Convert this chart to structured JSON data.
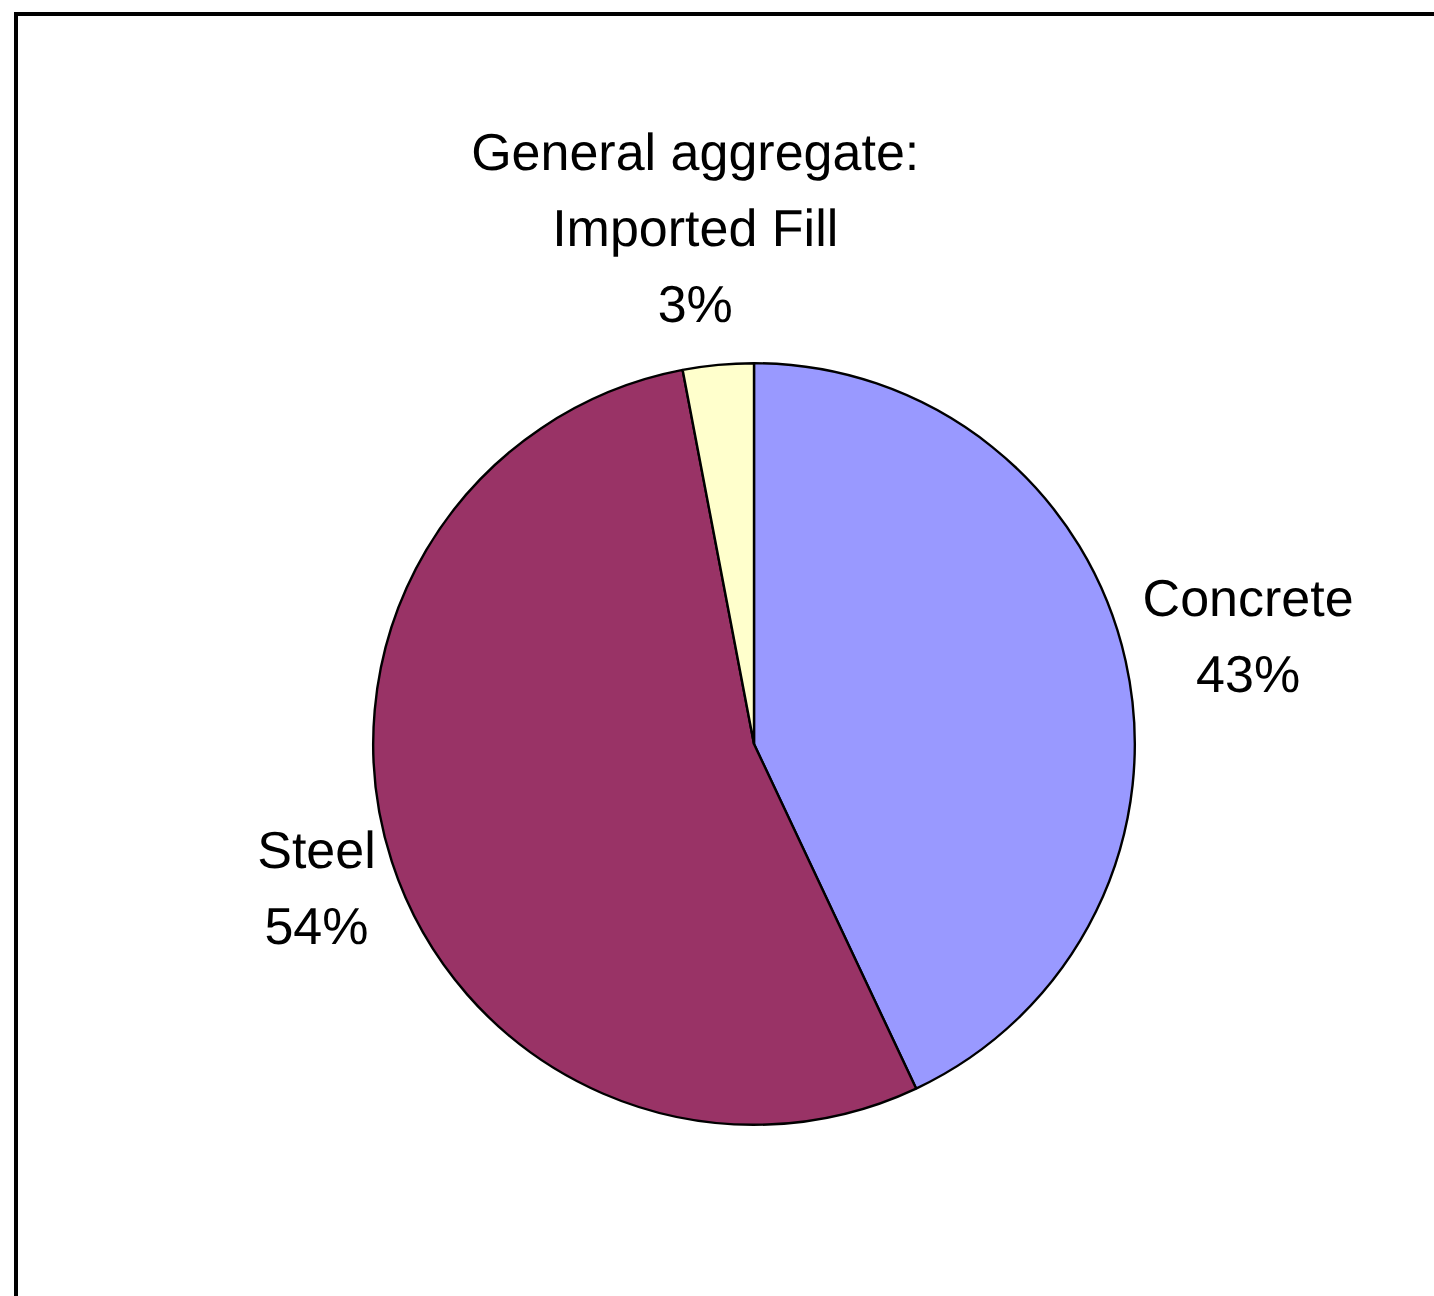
{
  "chart_data": {
    "type": "pie",
    "categories": [
      "Concrete",
      "Steel",
      "General aggregate: Imported Fill"
    ],
    "values": [
      43,
      54,
      3
    ],
    "value_labels": [
      "43%",
      "54%",
      "3%"
    ],
    "colors": [
      "#9999ff",
      "#993366",
      "#ffffcc"
    ],
    "legend": false
  }
}
